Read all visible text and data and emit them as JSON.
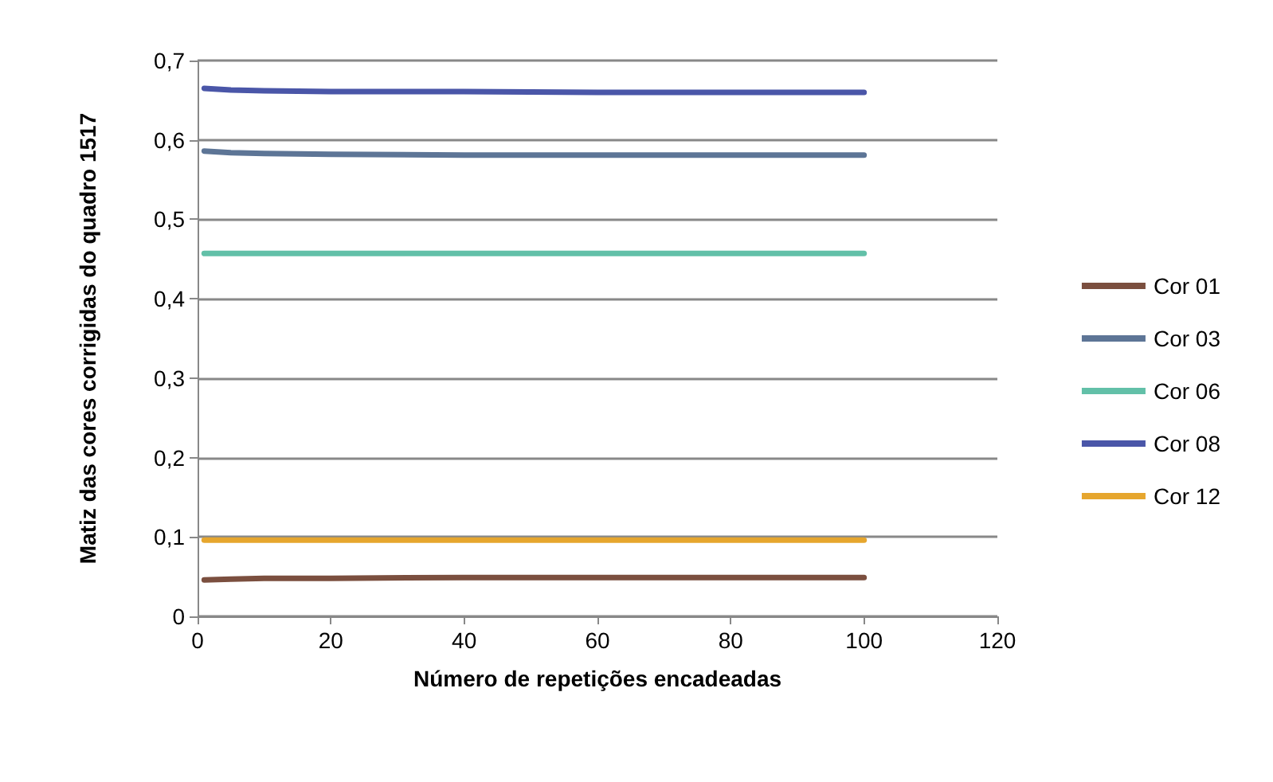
{
  "chart_data": {
    "type": "line",
    "xlabel": "Número de repetições encadeadas",
    "ylabel": "Matiz das cores corrigidas do quadro 1517",
    "x": [
      1,
      5,
      10,
      20,
      40,
      60,
      80,
      100
    ],
    "series": [
      {
        "name": "Cor 01",
        "color": "#7b4f3f",
        "values": [
          0.046,
          0.047,
          0.048,
          0.048,
          0.049,
          0.049,
          0.049,
          0.049
        ]
      },
      {
        "name": "Cor 03",
        "color": "#5d7596",
        "values": [
          0.586,
          0.584,
          0.583,
          0.582,
          0.581,
          0.581,
          0.581,
          0.581
        ]
      },
      {
        "name": "Cor 06",
        "color": "#62c0a8",
        "values": [
          0.457,
          0.457,
          0.457,
          0.457,
          0.457,
          0.457,
          0.457,
          0.457
        ]
      },
      {
        "name": "Cor 08",
        "color": "#4a56a8",
        "values": [
          0.665,
          0.663,
          0.662,
          0.661,
          0.661,
          0.66,
          0.66,
          0.66
        ]
      },
      {
        "name": "Cor 12",
        "color": "#e6a62e",
        "values": [
          0.096,
          0.096,
          0.096,
          0.096,
          0.096,
          0.096,
          0.096,
          0.096
        ]
      }
    ],
    "xlim": [
      0,
      120
    ],
    "xticks": [
      0,
      20,
      40,
      60,
      80,
      100,
      120
    ],
    "ylim": [
      0,
      0.7
    ],
    "yticks": [
      {
        "value": 0,
        "label": "0"
      },
      {
        "value": 0.1,
        "label": "0,1"
      },
      {
        "value": 0.2,
        "label": "0,2"
      },
      {
        "value": 0.3,
        "label": "0,3"
      },
      {
        "value": 0.4,
        "label": "0,4"
      },
      {
        "value": 0.5,
        "label": "0,5"
      },
      {
        "value": 0.6,
        "label": "0,6"
      },
      {
        "value": 0.7,
        "label": "0,7"
      }
    ],
    "grid": "y",
    "legend": "right",
    "marker": "none",
    "line_style": "solid"
  }
}
